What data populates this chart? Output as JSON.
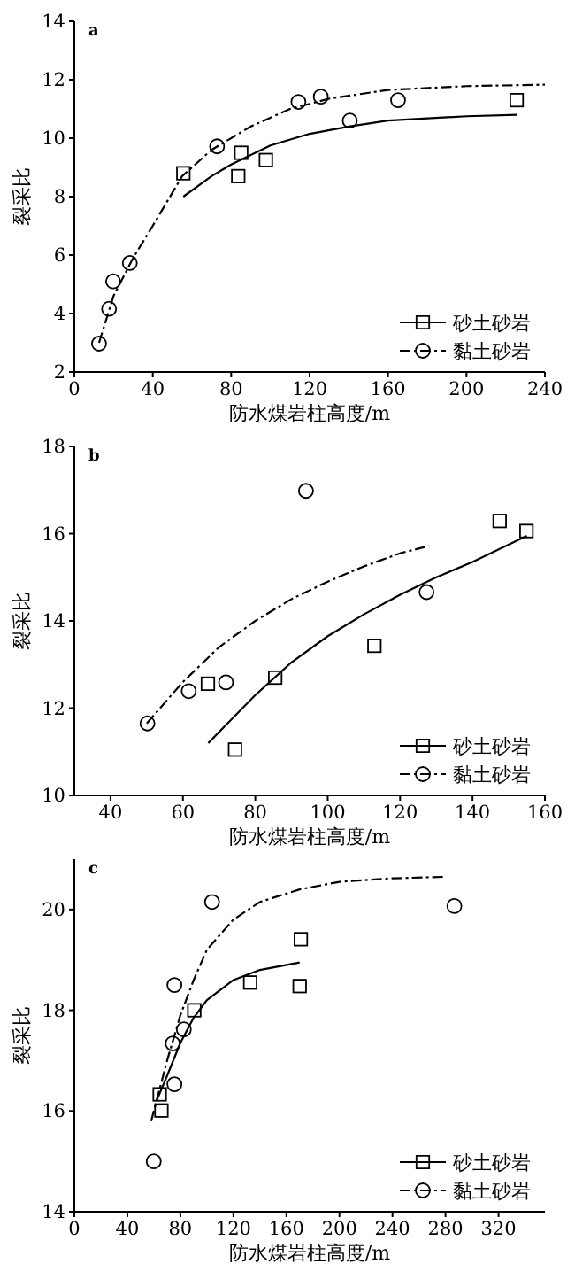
{
  "chart_data": [
    {
      "type": "scatter",
      "xlabel": "防水煤岩柱高度/m",
      "ylabel": "裂采比",
      "annotations": [
        "a"
      ],
      "xlim": [
        0,
        240
      ],
      "xticks": [
        0,
        40,
        80,
        120,
        160,
        200,
        240
      ],
      "ylim": [
        2,
        14
      ],
      "yticks": [
        2,
        4,
        6,
        8,
        10,
        12,
        14
      ],
      "grid": false,
      "legend": "bottom right",
      "series": [
        {
          "name": "砂土砂岩",
          "marker": "square",
          "color": "#000000",
          "x": [
            55.6,
            83.6,
            85.1,
            97.7,
            225.6
          ],
          "values": [
            8.8,
            8.7,
            9.5,
            9.25,
            11.3
          ]
        },
        {
          "name": "黏土砂岩",
          "marker": "circle",
          "color": "#000000",
          "x": [
            12.6,
            17.7,
            19.8,
            28.3,
            72.8,
            114.3,
            125.7,
            140.5,
            165.1
          ],
          "values": [
            2.97,
            4.16,
            5.1,
            5.73,
            9.72,
            11.24,
            11.42,
            10.6,
            11.3
          ]
        },
        {
          "type": "line",
          "line_style": "solid",
          "color": "#000000",
          "x": [
            55.6,
            70,
            80,
            100,
            120,
            140,
            160,
            200,
            226
          ],
          "values": [
            8.0,
            8.7,
            9.1,
            9.75,
            10.15,
            10.4,
            10.6,
            10.75,
            10.8
          ]
        },
        {
          "type": "line",
          "line_style": "dashdot",
          "color": "#000000",
          "x": [
            12.6,
            20,
            30,
            40,
            55,
            70,
            90,
            110,
            130,
            160,
            200,
            240
          ],
          "values": [
            3.0,
            4.6,
            5.9,
            7.0,
            8.7,
            9.6,
            10.4,
            11.0,
            11.35,
            11.65,
            11.78,
            11.83
          ]
        }
      ]
    },
    {
      "type": "scatter",
      "xlabel": "防水煤岩柱高度/m",
      "ylabel": "裂采比",
      "annotations": [
        "b"
      ],
      "xlim": [
        30,
        160
      ],
      "xticks": [
        40,
        60,
        80,
        100,
        120,
        140,
        160
      ],
      "ylim": [
        10,
        18
      ],
      "yticks": [
        10,
        12,
        14,
        16,
        18
      ],
      "grid": false,
      "legend": "bottom right",
      "series": [
        {
          "name": "砂土砂岩",
          "marker": "square",
          "color": "#000000",
          "x": [
            66.9,
            74.4,
            85.5,
            112.9,
            147.5,
            154.9
          ],
          "values": [
            12.56,
            11.05,
            12.7,
            13.43,
            16.29,
            16.06
          ]
        },
        {
          "name": "黏土砂岩",
          "marker": "circle",
          "color": "#000000",
          "x": [
            50.2,
            61.6,
            71.9,
            94,
            127.3
          ],
          "values": [
            11.65,
            12.39,
            12.59,
            16.98,
            14.66
          ]
        },
        {
          "type": "line",
          "line_style": "solid",
          "color": "#000000",
          "x": [
            67,
            80,
            90,
            100,
            110,
            120,
            130,
            140,
            155
          ],
          "values": [
            11.2,
            12.3,
            13.05,
            13.65,
            14.15,
            14.6,
            15.0,
            15.35,
            15.95
          ]
        },
        {
          "type": "line",
          "line_style": "dashdot",
          "color": "#000000",
          "x": [
            50,
            60,
            70,
            80,
            90,
            100,
            110,
            120,
            128
          ],
          "values": [
            11.65,
            12.6,
            13.4,
            14.0,
            14.5,
            14.9,
            15.25,
            15.55,
            15.72
          ]
        }
      ]
    },
    {
      "type": "scatter",
      "xlabel": "防水煤岩柱高度/m",
      "ylabel": "裂采比",
      "annotations": [
        "c"
      ],
      "xlim": [
        0,
        355
      ],
      "xticks": [
        0,
        40,
        80,
        120,
        160,
        200,
        240,
        280,
        320
      ],
      "ylim": [
        14,
        21
      ],
      "yticks": [
        14,
        16,
        18,
        20
      ],
      "grid": false,
      "legend": "bottom right",
      "series": [
        {
          "name": "砂土砂岩",
          "marker": "square",
          "color": "#000000",
          "x": [
            64.4,
            65.7,
            90.5,
            132.7,
            170,
            170.9
          ],
          "values": [
            16.33,
            16.01,
            18.0,
            18.55,
            18.48,
            19.41
          ]
        },
        {
          "name": "黏土砂岩",
          "marker": "circle",
          "color": "#000000",
          "x": [
            59.9,
            74.2,
            75.5,
            75.5,
            82.6,
            103.9,
            286.7
          ],
          "values": [
            15.0,
            17.34,
            18.5,
            16.53,
            17.62,
            20.15,
            20.07
          ]
        },
        {
          "type": "line",
          "line_style": "solid",
          "color": "#000000",
          "x": [
            62,
            70,
            80,
            90,
            100,
            120,
            140,
            170
          ],
          "values": [
            16.2,
            16.7,
            17.35,
            17.85,
            18.2,
            18.6,
            18.8,
            18.95
          ]
        },
        {
          "type": "line",
          "line_style": "dashdot",
          "color": "#000000",
          "x": [
            58,
            70,
            80,
            90,
            100,
            120,
            140,
            170,
            200,
            240,
            280
          ],
          "values": [
            15.8,
            17.0,
            17.9,
            18.6,
            19.2,
            19.8,
            20.15,
            20.4,
            20.55,
            20.62,
            20.65
          ]
        }
      ]
    }
  ]
}
